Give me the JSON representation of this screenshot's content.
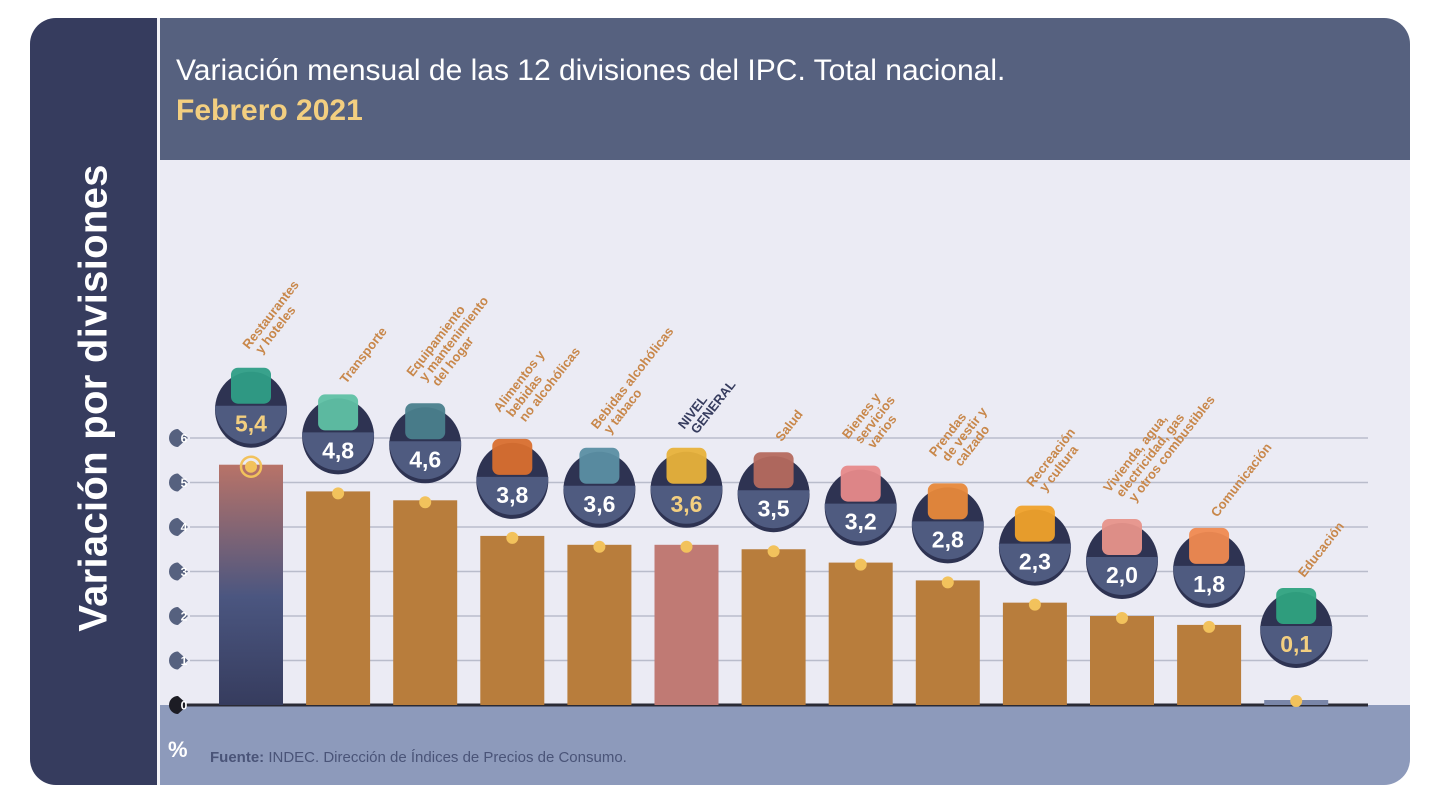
{
  "side_title": "Variación por divisiones",
  "header": {
    "title": "Variación mensual de las 12 divisiones del IPC. Total nacional.",
    "subtitle": "Febrero 2021"
  },
  "footer": {
    "unit": "%",
    "source_label": "Fuente:",
    "source_text": " INDEC. Dirección de Índices de Precios de Consumo."
  },
  "colors": {
    "bar": "#b87d3c",
    "bar_general": "#c07a74",
    "bar_highlight_top": "#b87368",
    "bar_highlight_bottom": "#363c5e",
    "bar_education": "#7a86a8",
    "label_text": "#c8874a",
    "label_general": "#363c5e",
    "value_badge": "#4f5b80",
    "value_text": "#ffffff",
    "value_text_highlight": "#f3cf80",
    "dot": "#f2c25c",
    "grid": "#b9bccb",
    "axis_badge": "#56617f"
  },
  "chart_data": {
    "type": "bar",
    "title": "Variación mensual de las 12 divisiones del IPC. Total nacional.",
    "subtitle": "Febrero 2021",
    "xlabel": "",
    "ylabel": "%",
    "ylim": [
      0,
      6
    ],
    "yticks": [
      0,
      1,
      2,
      3,
      4,
      5,
      6
    ],
    "grid": true,
    "categories": [
      "Restaurantes y hoteles",
      "Transporte",
      "Equipamiento y mantenimiento del hogar",
      "Alimentos y bebidas no alcohólicas",
      "Bebidas alcohólicas y tabaco",
      "NIVEL GENERAL",
      "Salud",
      "Bienes y servicios varios",
      "Prendas de vestir y calzado",
      "Recreación y cultura",
      "Vivienda, agua, electricidad, gas y otros combustibles",
      "Comunicación",
      "Educación"
    ],
    "label_lines": [
      [
        "Restaurantes",
        "y hoteles"
      ],
      [
        "Transporte"
      ],
      [
        "Equipamiento",
        "y mantenimiento",
        "del hogar"
      ],
      [
        "Alimentos y",
        "bebidas",
        "no alcohólicas"
      ],
      [
        "Bebidas alcohólicas",
        "y tabaco"
      ],
      [
        "NIVEL",
        "GENERAL"
      ],
      [
        "Salud"
      ],
      [
        "Bienes y",
        "servicios",
        "varios"
      ],
      [
        "Prendas",
        "de vestir y",
        "calzado"
      ],
      [
        "Recreación",
        "y cultura"
      ],
      [
        "Vivienda, agua,",
        "electricidad, gas",
        "y otros combustibles"
      ],
      [
        "Comunicación"
      ],
      [
        "Educación"
      ]
    ],
    "values": [
      5.4,
      4.8,
      4.6,
      3.8,
      3.6,
      3.6,
      3.5,
      3.2,
      2.8,
      2.3,
      2.0,
      1.8,
      0.1
    ],
    "value_labels": [
      "5,4",
      "4,8",
      "4,6",
      "3,8",
      "3,6",
      "3,6",
      "3,5",
      "3,2",
      "2,8",
      "2,3",
      "2,0",
      "1,8",
      "0,1"
    ],
    "icons": [
      "restaurant-travel-icon",
      "bus-card-icon",
      "washing-machine-icon",
      "roast-chicken-icon",
      "bottle-glass-icon",
      "shopping-basket-icon",
      "first-aid-icon",
      "comb-scissors-icon",
      "tshirt-icon",
      "sun-ball-icon",
      "lightbulb-wrench-icon",
      "smartphone-icon",
      "book-pencil-icon"
    ],
    "highlight": [
      "max",
      "",
      "",
      "",
      "",
      "general",
      "",
      "",
      "",
      "",
      "",
      "",
      "min"
    ],
    "source": "Fuente: INDEC. Dirección de Índices de Precios de Consumo."
  }
}
